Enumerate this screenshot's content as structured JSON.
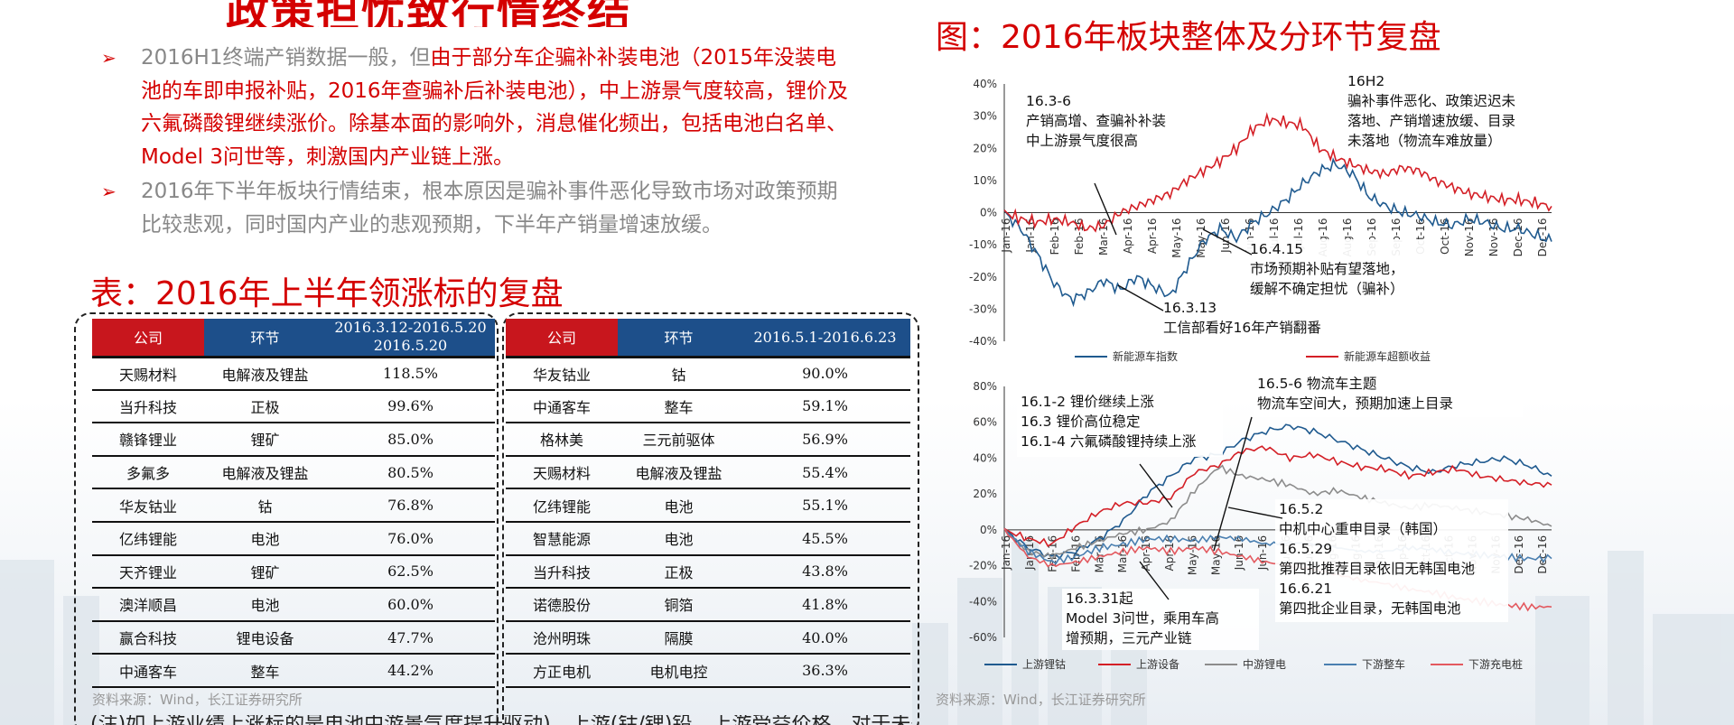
{
  "left": {
    "cut_title": "政策担忧致行情终结",
    "bullets": [
      {
        "grey_part": "2016H1终端产销数据一般，但",
        "red_part": "由于部分车企骗补补装电池（2015年没装电池的车即申报补贴，2016年查骗补后补装电池），中上游景气度较高，锂价及六氟磷酸锂继续涨价。除基本面的影响外，消息催化频出，包括电池白名单、Model 3问世等，刺激国内产业链上涨。"
      },
      {
        "grey_part": "2016年下半年板块行情结束，根本原因是骗补事件恶化导致市场对政策预期比较悲观，同时国内产业的悲观预期，下半年产销量增速放缓。",
        "red_part": ""
      }
    ],
    "table_title": "表：2016年上半年领涨标的复盘",
    "table1": {
      "headers": [
        "公司",
        "环节",
        "2016.3.12-2016.5.20\n2016.5.20"
      ],
      "rows": [
        [
          "天赐材料",
          "电解液及锂盐",
          "118.5%"
        ],
        [
          "当升科技",
          "正极",
          "99.6%"
        ],
        [
          "赣锋锂业",
          "锂矿",
          "85.0%"
        ],
        [
          "多氟多",
          "电解液及锂盐",
          "80.5%"
        ],
        [
          "华友钴业",
          "钴",
          "76.8%"
        ],
        [
          "亿纬锂能",
          "电池",
          "76.0%"
        ],
        [
          "天齐锂业",
          "锂矿",
          "62.5%"
        ],
        [
          "澳洋顺昌",
          "电池",
          "60.0%"
        ],
        [
          "赢合科技",
          "锂电设备",
          "47.7%"
        ],
        [
          "中通客车",
          "整车",
          "44.2%"
        ]
      ]
    },
    "table2": {
      "headers": [
        "公司",
        "环节",
        "2016.5.1-2016.6.23"
      ],
      "rows": [
        [
          "华友钴业",
          "钴",
          "90.0%"
        ],
        [
          "中通客车",
          "整车",
          "59.1%"
        ],
        [
          "格林美",
          "三元前驱体",
          "56.9%"
        ],
        [
          "天赐材料",
          "电解液及锂盐",
          "55.4%"
        ],
        [
          "亿纬锂能",
          "电池",
          "55.1%"
        ],
        [
          "智慧能源",
          "电池",
          "45.5%"
        ],
        [
          "当升科技",
          "正极",
          "43.8%"
        ],
        [
          "诺德股份",
          "铜箔",
          "41.8%"
        ],
        [
          "沧州明珠",
          "隔膜",
          "40.0%"
        ],
        [
          "方正电机",
          "电机电控",
          "36.3%"
        ]
      ]
    },
    "source": "资料来源：Wind，长江证券研究所",
    "bottom_cut_text": "(注)如上游业绩上涨标的是电池中游景气度提升驱动)…上游(钴/锂)铅…上游受益价格…对于未来下半年产业链的预期相对悲观"
  },
  "right": {
    "chart_title": "图：2016年板块整体及分环节复盘",
    "source": "资料来源：Wind，长江证券研究所",
    "colors": {
      "dark_blue": "#1f5a8f",
      "red": "#d41f26",
      "grey": "#8c8c8c",
      "light_blue": "#4a7fb0",
      "light_red": "#e3595f"
    }
  },
  "chart_data": [
    {
      "type": "line",
      "title": "",
      "y_ticks": [
        "40%",
        "30%",
        "20%",
        "10%",
        "0%",
        "-10%",
        "-20%",
        "-30%",
        "-40%"
      ],
      "ylim": [
        -0.4,
        0.4
      ],
      "x_ticks": [
        "Jan-16",
        "Jan-16",
        "Feb-16",
        "Feb-16",
        "Mar-16",
        "Apr-16",
        "Apr-16",
        "May-16",
        "May-16",
        "Jun-16",
        "Jun-16",
        "Jul-16",
        "Jul-16",
        "Aug-16",
        "Aug-16",
        "Sep-16",
        "Sep-16",
        "Oct-16",
        "Oct-16",
        "Nov-16",
        "Nov-16",
        "Dec-16",
        "Dec-16"
      ],
      "series": [
        {
          "name": "新能源车指数",
          "color": "#1f5a8f",
          "values": [
            0,
            -0.05,
            -0.13,
            -0.22,
            -0.27,
            -0.25,
            -0.21,
            -0.24,
            -0.2,
            -0.23,
            -0.26,
            -0.17,
            -0.09,
            -0.05,
            -0.08,
            -0.03,
            0,
            0.04,
            0.09,
            0.13,
            0.15,
            0.12,
            0.05,
            0.02,
            0.0,
            -0.01,
            -0.03,
            -0.04,
            -0.02,
            -0.03,
            -0.05,
            -0.05,
            -0.07,
            -0.09
          ]
        },
        {
          "name": "新能源车超额收益",
          "color": "#d41f26",
          "values": [
            0,
            -0.02,
            -0.03,
            -0.02,
            -0.03,
            -0.05,
            -0.04,
            0,
            0.02,
            0.04,
            0.06,
            0.1,
            0.13,
            0.16,
            0.2,
            0.26,
            0.29,
            0.28,
            0.27,
            0.2,
            0.17,
            0.15,
            0.13,
            0.12,
            0.14,
            0.13,
            0.1,
            0.08,
            0.06,
            0.05,
            0.04,
            0.04,
            0.03,
            0.02
          ]
        }
      ],
      "annotations": [
        "16.3-6\n产销高增、查骗补补装\n中上游景气度很高",
        "16H2\n骗补事件恶化、政策迟迟未\n落地、产销增速放缓、目录\n未落地（物流车难放量）",
        "16.4.15\n市场预期补贴有望落地，\n缓解不确定担忧（骗补）",
        "16.3.13\n工信部看好16年产销翻番"
      ]
    },
    {
      "type": "line",
      "title": "",
      "y_ticks": [
        "80%",
        "60%",
        "40%",
        "20%",
        "0%",
        "-20%",
        "-40%",
        "-60%"
      ],
      "ylim": [
        -0.6,
        0.8
      ],
      "x_ticks": [
        "Jan-16",
        "Jan-16",
        "Feb-16",
        "Feb-16",
        "Mar-16",
        "Mar-16",
        "Apr-16",
        "Apr-16",
        "May-16",
        "May-16",
        "Jun-16",
        "Jun-16",
        "Jul-16",
        "Jul-16",
        "Aug-16",
        "Aug-16",
        "Sep-16",
        "Sep-16",
        "Oct-16",
        "Oct-16",
        "Nov-16",
        "Nov-16",
        "Dec-16",
        "Dec-16"
      ],
      "series": [
        {
          "name": "上游锂钴",
          "color": "#1f5a8f",
          "values": [
            0,
            -0.1,
            -0.15,
            -0.12,
            -0.05,
            0.05,
            0.2,
            0.3,
            0.4,
            0.42,
            0.5,
            0.55,
            0.58,
            0.55,
            0.5,
            0.45,
            0.4,
            0.35,
            0.32,
            0.36,
            0.38,
            0.4,
            0.36,
            0.3
          ]
        },
        {
          "name": "上游设备",
          "color": "#d41f26",
          "values": [
            0,
            -0.05,
            -0.08,
            0.02,
            0.1,
            0.15,
            0.15,
            0.18,
            0.32,
            0.36,
            0.44,
            0.46,
            0.4,
            0.42,
            0.38,
            0.35,
            0.34,
            0.3,
            0.32,
            0.34,
            0.3,
            0.28,
            0.26,
            0.25
          ]
        },
        {
          "name": "中游锂电",
          "color": "#8c8c8c",
          "values": [
            0,
            -0.12,
            -0.15,
            -0.1,
            -0.06,
            -0.02,
            0,
            0.05,
            0.22,
            0.35,
            0.3,
            0.28,
            0.25,
            0.2,
            0.22,
            0.18,
            0.15,
            0.12,
            0.14,
            0.12,
            0.1,
            0.08,
            0.06,
            0.02
          ]
        },
        {
          "name": "下游整车",
          "color": "#4a7fb0",
          "values": [
            0,
            -0.12,
            -0.18,
            -0.15,
            -0.1,
            -0.08,
            -0.05,
            -0.05,
            -0.06,
            -0.04,
            -0.05,
            -0.08,
            -0.07,
            -0.08,
            -0.1,
            -0.12,
            -0.12,
            -0.1,
            -0.11,
            -0.13,
            -0.14,
            -0.15,
            -0.16,
            -0.16
          ]
        },
        {
          "name": "下游充电桩",
          "color": "#e3595f",
          "values": [
            0,
            -0.15,
            -0.2,
            -0.18,
            -0.15,
            -0.12,
            -0.1,
            -0.12,
            -0.1,
            -0.12,
            -0.15,
            -0.18,
            -0.2,
            -0.22,
            -0.25,
            -0.28,
            -0.3,
            -0.33,
            -0.35,
            -0.38,
            -0.4,
            -0.42,
            -0.43,
            -0.43
          ]
        }
      ],
      "annotations": [
        "16.1-2 锂价继续上涨\n16.3 锂价高位稳定\n16.1-4 六氟磷酸锂持续上涨",
        "16.5-6 物流车主题\n物流车空间大，预期加速上目录",
        "16.5.2\n中机中心重申目录（韩国）\n16.5.29\n第四批推荐目录依旧无韩国电池\n16.6.21\n第四批企业目录，无韩国电池",
        "16.3.31起\nModel 3问世，乘用车高\n增预期，三元产业链"
      ]
    }
  ]
}
